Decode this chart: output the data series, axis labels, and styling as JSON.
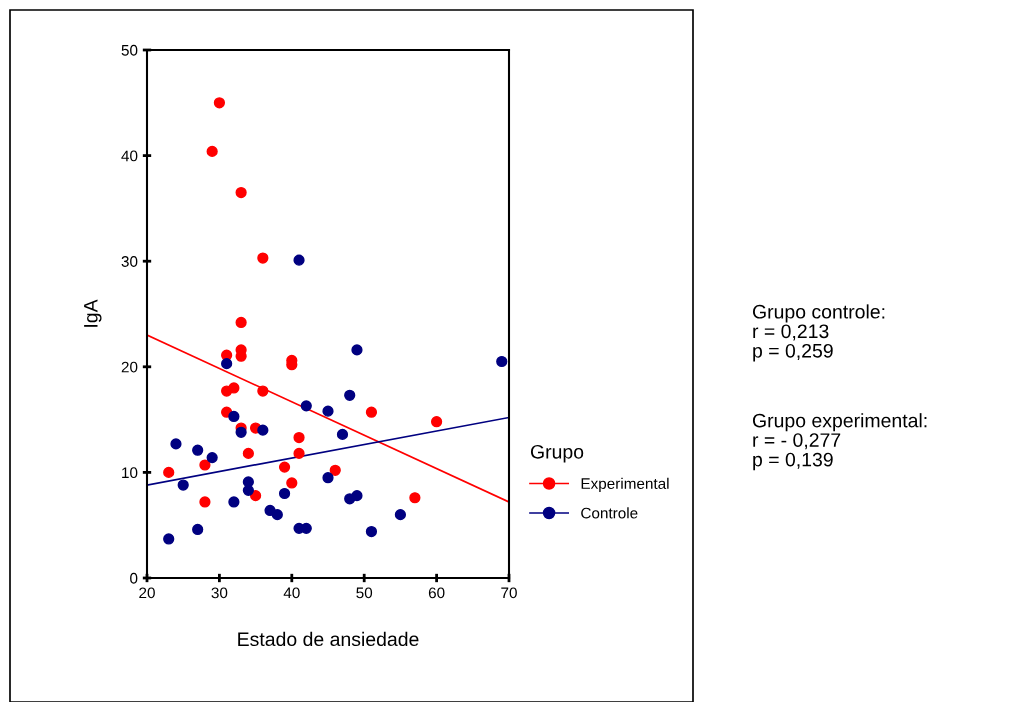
{
  "chart_data": {
    "type": "scatter",
    "xlabel": "Estado de ansiedade",
    "ylabel": "IgA",
    "legend_title": "Grupo",
    "xlim": [
      20,
      70
    ],
    "xticks": [
      20,
      30,
      40,
      50,
      60,
      70
    ],
    "ylim": [
      0,
      50
    ],
    "yticks": [
      0,
      10,
      20,
      30,
      40,
      50
    ],
    "grid": false,
    "legend": "right",
    "series": [
      {
        "name": "Experimental",
        "color": "#ff0000",
        "marker": "circle",
        "x": [
          30,
          29,
          33,
          36,
          33,
          33,
          33,
          31,
          40,
          40,
          31,
          32,
          36,
          31,
          33,
          35,
          34,
          41,
          41,
          23,
          28,
          39,
          46,
          40,
          35,
          28,
          51,
          60,
          57
        ],
        "values": [
          45,
          40.4,
          36.5,
          30.3,
          24.2,
          21.6,
          21,
          21.1,
          20.6,
          20.2,
          17.7,
          18,
          17.7,
          15.7,
          14.2,
          14.2,
          11.8,
          13.3,
          11.8,
          10,
          10.7,
          10.5,
          10.2,
          9,
          7.8,
          7.2,
          15.7,
          14.8,
          7.6
        ]
      },
      {
        "name": "Controle",
        "color": "#000080",
        "marker": "circle",
        "x": [
          31,
          41,
          69,
          49,
          42,
          45,
          48,
          47,
          32,
          33,
          36,
          24,
          27,
          29,
          25,
          34,
          34,
          39,
          45,
          48,
          49,
          32,
          37,
          38,
          27,
          23,
          41,
          42,
          51,
          55
        ],
        "values": [
          20.3,
          30.1,
          20.5,
          21.6,
          16.3,
          15.8,
          17.3,
          13.6,
          15.3,
          13.8,
          14,
          12.7,
          12.1,
          11.4,
          8.8,
          9.1,
          8.3,
          8,
          9.5,
          7.5,
          7.8,
          7.2,
          6.4,
          6,
          4.6,
          3.7,
          4.7,
          4.7,
          4.4,
          6
        ]
      },
      {
        "type": "line",
        "marker": "none",
        "color": "#ff0000",
        "x": [
          20,
          70
        ],
        "values": [
          23,
          7.2
        ]
      },
      {
        "type": "line",
        "marker": "none",
        "color": "#000080",
        "x": [
          20,
          70
        ],
        "values": [
          8.8,
          15.2
        ]
      }
    ],
    "annotations": [
      "Grupo controle:\nr = 0,213\np = 0,259",
      "Grupo experimental:\nr = - 0,277\np = 0,139"
    ]
  }
}
